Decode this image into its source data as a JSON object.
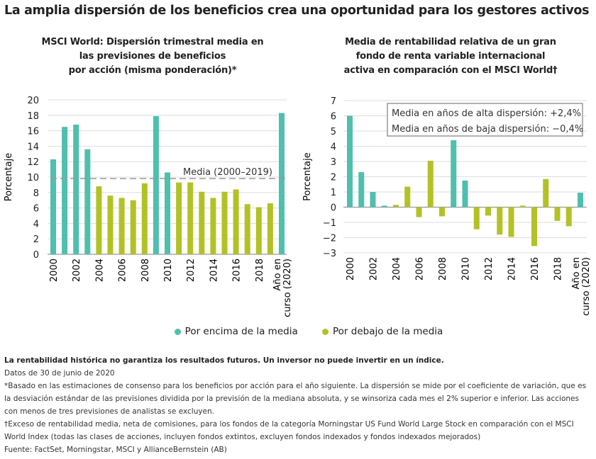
{
  "title": "La amplia dispersión de los beneficios crea una oportunidad para los gestores activos",
  "colors": {
    "above": "#4fbfae",
    "below": "#b2c225"
  },
  "chart_data": [
    {
      "type": "bar",
      "title": "MSCI World: Dispersión trimestral media en las previsiones de beneficios por acción (misma ponderación)*",
      "title_lines": [
        "MSCI World: Dispersión trimestral media en",
        "las previsiones de beneficios",
        "por acción (misma ponderación)*"
      ],
      "ylabel": "Porcentaje",
      "ylim": [
        0,
        20
      ],
      "yticks": [
        0,
        2,
        4,
        6,
        8,
        10,
        12,
        14,
        16,
        18,
        20
      ],
      "grid": true,
      "categories": [
        "2000",
        "2001",
        "2002",
        "2003",
        "2004",
        "2005",
        "2006",
        "2007",
        "2008",
        "2009",
        "2010",
        "2011",
        "2012",
        "2013",
        "2014",
        "2015",
        "2016",
        "2017",
        "2018",
        "2019",
        "Año en curso (2020)"
      ],
      "xtick_labels": [
        "2000",
        "2002",
        "2004",
        "2006",
        "2008",
        "2010",
        "2012",
        "2014",
        "2016",
        "2018",
        "Año en|curso (2020)"
      ],
      "values": [
        12.3,
        16.5,
        16.8,
        13.6,
        8.8,
        7.6,
        7.3,
        7.0,
        9.2,
        17.9,
        10.6,
        9.3,
        9.3,
        8.1,
        7.3,
        8.1,
        8.4,
        6.5,
        6.1,
        6.6,
        18.3
      ],
      "group": [
        "above",
        "above",
        "above",
        "above",
        "below",
        "below",
        "below",
        "below",
        "below",
        "above",
        "above",
        "below",
        "below",
        "below",
        "below",
        "below",
        "below",
        "below",
        "below",
        "below",
        "above"
      ],
      "reference_line": {
        "value": 9.8,
        "label": "Media (2000–2019)"
      }
    },
    {
      "type": "bar",
      "title": "Media de rentabilidad relativa de un gran fondo de renta variable internacional activa en comparación con el MSCI World†",
      "title_lines": [
        "Media de rentabilidad relativa de un gran",
        "fondo de renta variable internacional",
        "activa  en comparación con el MSCI World†"
      ],
      "ylabel": "Porcentaje",
      "ylim": [
        -3,
        7
      ],
      "yticks": [
        -3,
        -2,
        -1,
        0,
        1,
        2,
        3,
        4,
        5,
        6,
        7
      ],
      "grid": true,
      "categories": [
        "2000",
        "2001",
        "2002",
        "2003",
        "2004",
        "2005",
        "2006",
        "2007",
        "2008",
        "2009",
        "2010",
        "2011",
        "2012",
        "2013",
        "2014",
        "2015",
        "2016",
        "2017",
        "2018",
        "2019",
        "Año en curso (2020)"
      ],
      "xtick_labels": [
        "2000",
        "2002",
        "2004",
        "2006",
        "2008",
        "2010",
        "2012",
        "2014",
        "2016",
        "2018",
        "Año en|curso (2020)"
      ],
      "values": [
        6.0,
        2.3,
        1.0,
        0.1,
        0.15,
        1.35,
        -0.65,
        3.05,
        -0.6,
        4.4,
        1.75,
        -1.45,
        -0.55,
        -1.8,
        -1.95,
        0.1,
        -2.55,
        1.85,
        -0.9,
        -1.25,
        0.95
      ],
      "group": [
        "above",
        "above",
        "above",
        "above",
        "below",
        "below",
        "below",
        "below",
        "below",
        "above",
        "above",
        "below",
        "below",
        "below",
        "below",
        "below",
        "below",
        "below",
        "below",
        "below",
        "above"
      ],
      "annotations": [
        "Media en años de alta dispersión:  +2,4%",
        "Media en años de baja dispersión: −0,4%"
      ]
    }
  ],
  "legend": [
    {
      "label": "Por encima de la media",
      "key": "above"
    },
    {
      "label": "Por debajo de la media",
      "key": "below"
    }
  ],
  "notes": {
    "disclaimer": "La rentabilidad histórica no garantiza los resultados futuros. Un inversor no puede invertir en un índice.",
    "date": "Datos de 30 de junio de 2020",
    "star": "*Basado en las estimaciones de consenso para los beneficios por acción para el año siguiente. La dispersión se mide por el coeficiente de variación, que es la desviación estándar de las previsiones dividida por la previsión de la mediana absoluta, y se winsoriza cada mes el 2% superior e inferior. Las acciones con menos de tres previsiones de analistas se excluyen.",
    "dagger": "†Exceso de rentabilidad media, neta de comisiones, para los fondos de la categoría Morningstar US Fund World Large Stock en comparación con el MSCI World Index (todas las clases de acciones, incluyen fondos extintos, excluyen fondos indexados y fondos indexados mejorados)",
    "source": "Fuente: FactSet, Morningstar, MSCI y AllianceBernstein (AB)"
  }
}
